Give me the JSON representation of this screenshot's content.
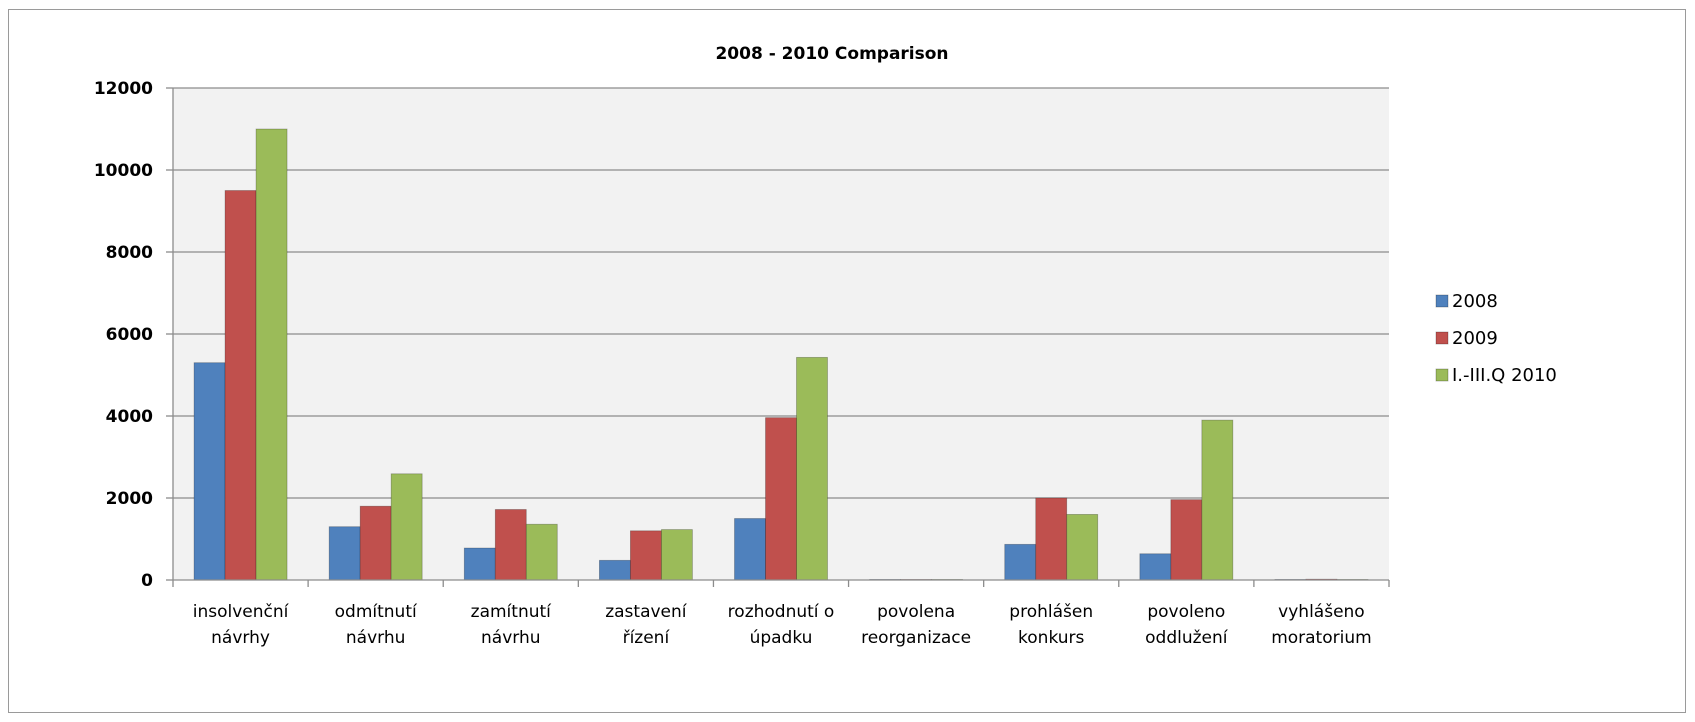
{
  "chart_data": {
    "type": "bar",
    "title": "2008 - 2010 Comparison",
    "xlabel": "",
    "ylabel": "",
    "ylim": [
      0,
      12000
    ],
    "yticks": [
      0,
      2000,
      4000,
      6000,
      8000,
      10000,
      12000
    ],
    "grid": true,
    "legend_position": "right",
    "categories": [
      [
        "insolvenční",
        "návrhy"
      ],
      [
        "odmítnutí",
        "návrhu"
      ],
      [
        "zamítnutí",
        "návrhu"
      ],
      [
        "zastavení",
        "řízení"
      ],
      [
        "rozhodnutí o",
        "úpadku"
      ],
      [
        "povolena",
        "reorganizace"
      ],
      [
        "prohlášen",
        "konkurs"
      ],
      [
        "povoleno",
        "oddlužení"
      ],
      [
        "vyhlášeno",
        "moratorium"
      ]
    ],
    "series": [
      {
        "name": "2008",
        "color": "#4F81BD",
        "values": [
          5300,
          1300,
          780,
          480,
          1500,
          5,
          870,
          640,
          2
        ]
      },
      {
        "name": "2009",
        "color": "#C0504D",
        "values": [
          9500,
          1800,
          1720,
          1200,
          3960,
          10,
          2000,
          1960,
          20
        ]
      },
      {
        "name": "I.-III.Q 2010",
        "color": "#9BBB59",
        "values": [
          11000,
          2590,
          1360,
          1230,
          5430,
          8,
          1600,
          3900,
          5
        ]
      }
    ]
  }
}
